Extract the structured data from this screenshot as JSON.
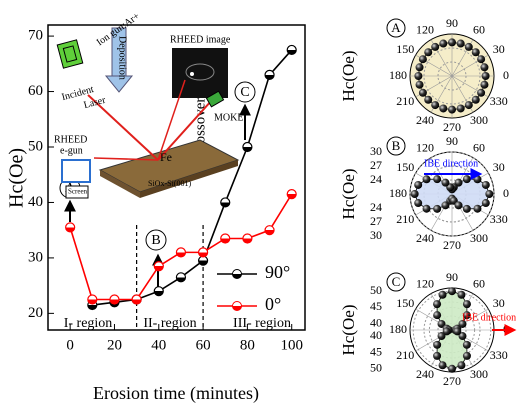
{
  "chart_data": [
    {
      "type": "line",
      "x_label": "Erosion time (minutes)",
      "y_label": "Hc(Oe)",
      "x": [
        0,
        10,
        20,
        30,
        40,
        50,
        60,
        70,
        80,
        90,
        100
      ],
      "series": [
        {
          "name": "90°",
          "color": "#000000",
          "values": [
            null,
            21.5,
            22,
            22.5,
            24,
            26.5,
            29.5,
            40,
            50,
            63,
            67.5
          ]
        },
        {
          "name": "0°",
          "color": "#ff0000",
          "values": [
            35.5,
            22.5,
            22.5,
            22.5,
            28.5,
            31,
            31,
            33.5,
            33.5,
            35,
            41.5
          ]
        }
      ],
      "xlim": [
        -10,
        106
      ],
      "ylim": [
        17,
        72
      ],
      "xticks": [
        0,
        20,
        40,
        60,
        80,
        100
      ],
      "yticks": [
        20,
        30,
        40,
        50,
        60,
        70
      ],
      "vlines": [
        30,
        60
      ],
      "annotations": [
        "I- region",
        "II- region",
        "III- region",
        "Crossover",
        "A",
        "B",
        "C"
      ],
      "legend": "lower right"
    },
    {
      "type": "polar",
      "label": "A",
      "y_label": "Hc(Oe)",
      "theta": [
        0,
        15,
        30,
        45,
        60,
        75,
        90,
        105,
        120,
        135,
        150,
        165,
        180,
        195,
        210,
        225,
        240,
        255,
        270,
        285,
        300,
        315,
        330,
        345
      ],
      "values": [
        24,
        24,
        24,
        24,
        24,
        24,
        24,
        24,
        24,
        24,
        24,
        24,
        24,
        24,
        24,
        24,
        24,
        24,
        24,
        24,
        24,
        24,
        24,
        24
      ],
      "rlim": [
        0,
        30
      ],
      "thetaticks": [
        0,
        30,
        60,
        90,
        120,
        150,
        180,
        210,
        240,
        270,
        300,
        330
      ],
      "fill": "#f5edc9"
    },
    {
      "type": "polar",
      "label": "B",
      "y_label": "Hc(Oe)",
      "theta": [
        0,
        15,
        30,
        45,
        60,
        75,
        90,
        105,
        120,
        135,
        150,
        165,
        180,
        195,
        210,
        225,
        240,
        255,
        270,
        285,
        300,
        315,
        330,
        345
      ],
      "values": [
        29,
        28.5,
        27.3,
        25.5,
        23.8,
        22.5,
        22,
        22.5,
        23.8,
        25.5,
        27.3,
        28.5,
        29,
        28.5,
        27.3,
        25.5,
        23.8,
        22.5,
        22,
        22.5,
        23.8,
        25.5,
        27.3,
        28.5
      ],
      "rlim": [
        21,
        30
      ],
      "rticks": [
        24,
        27,
        30
      ],
      "thetaticks": [
        0,
        30,
        60,
        90,
        120,
        150,
        180,
        210,
        240,
        270,
        300,
        330
      ],
      "fill": "#cfdcf5",
      "annotation": "IBE direction",
      "annotation_color": "#0000ff"
    },
    {
      "type": "polar",
      "label": "C",
      "y_label": "Hc(Oe)",
      "theta": [
        0,
        15,
        30,
        45,
        60,
        75,
        90,
        105,
        120,
        135,
        150,
        165,
        180,
        195,
        210,
        225,
        240,
        255,
        270,
        285,
        300,
        315,
        330,
        345
      ],
      "values": [
        39,
        39.7,
        41.75,
        44.5,
        47.25,
        49.3,
        50,
        49.3,
        47.25,
        44.5,
        41.75,
        39.7,
        39,
        39.7,
        41.75,
        44.5,
        47.25,
        49.3,
        50,
        49.3,
        47.25,
        44.5,
        41.75,
        39.7
      ],
      "rlim": [
        38,
        51
      ],
      "rticks": [
        40,
        45,
        50
      ],
      "thetaticks": [
        0,
        30,
        60,
        90,
        120,
        150,
        180,
        210,
        240,
        270,
        300,
        330
      ],
      "fill": "#cdeac4",
      "annotation": "IBE direction",
      "annotation_color": "#ff0000"
    }
  ],
  "inset": {
    "labels": [
      "Ion gun:Ar+",
      "Deposition",
      "RHEED image",
      "Incident",
      "Laser",
      "MOKE",
      "RHEED",
      "e-gun",
      "Fe",
      "SiOx-Si(001)",
      "Screen"
    ]
  }
}
